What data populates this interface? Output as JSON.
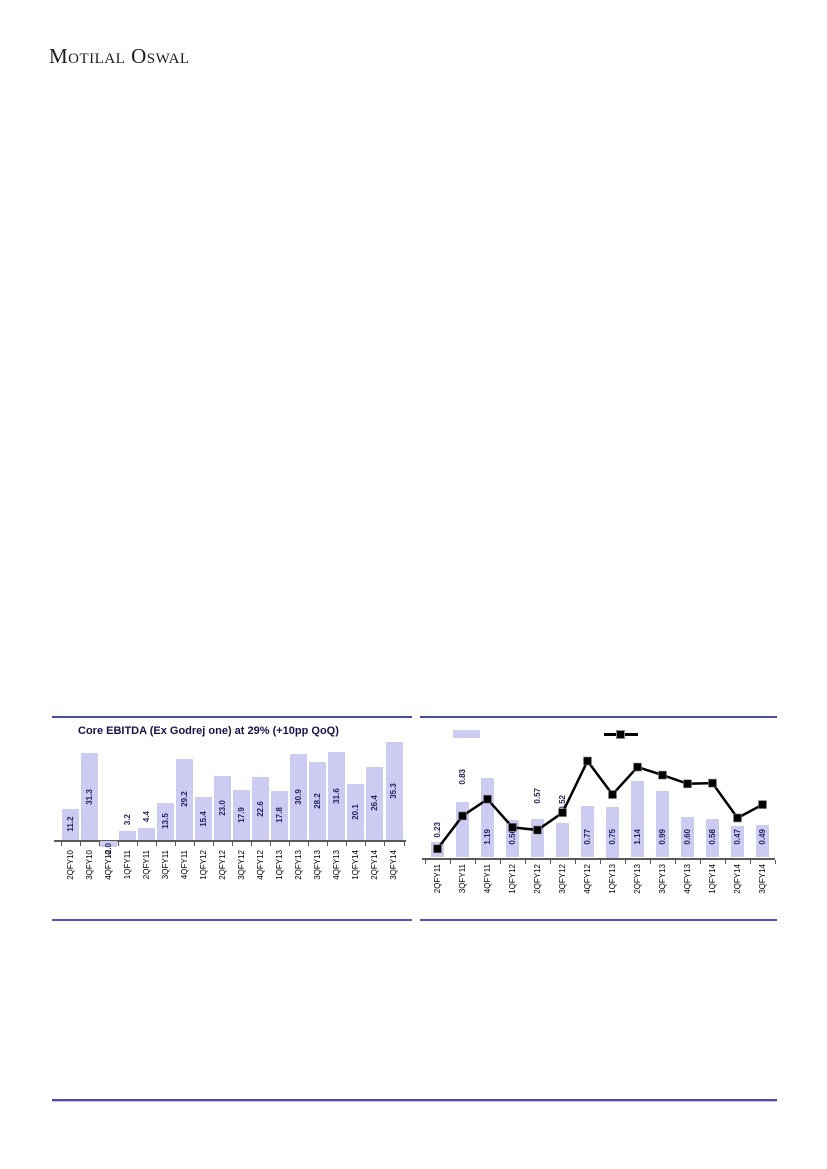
{
  "logo": {
    "text": "Motilal Oswal"
  },
  "chart_data": [
    {
      "type": "bar",
      "title": "Core EBITDA (Ex Godrej one) at 29% (+10pp QoQ)",
      "categories": [
        "2QFY10",
        "3QFY10",
        "4QFY10",
        "1QFY11",
        "2QFY11",
        "3QFY11",
        "4QFY11",
        "1QFY12",
        "2QFY12",
        "3QFY12",
        "4QFY12",
        "1QFY13",
        "2QFY13",
        "3QFY13",
        "4QFY13",
        "1QFY14",
        "2QFY14",
        "3QFY14"
      ],
      "values": [
        11.2,
        31.3,
        -2.0,
        3.2,
        4.4,
        13.5,
        29.2,
        15.4,
        23.0,
        17.9,
        22.6,
        17.8,
        30.9,
        28.2,
        31.6,
        20.1,
        26.4,
        35.3
      ],
      "labels": [
        "11.2",
        "31.3",
        "-2.0",
        "3.2",
        "4.4",
        "13.5",
        "29.2",
        "15.4",
        "23.0",
        "17.9",
        "22.6",
        "17.8",
        "30.9",
        "28.2",
        "31.6",
        "20.1",
        "26.4",
        "35.3"
      ],
      "xlabel": "",
      "ylabel": "",
      "ylim": [
        -5,
        37
      ],
      "grid": false,
      "legend": "none",
      "bar_color": "#ccccf2",
      "label_color": "#1f1f63"
    },
    {
      "type": "bar+line",
      "title": "",
      "categories": [
        "2QFY11",
        "3QFY11",
        "4QFY11",
        "1QFY12",
        "2QFY12",
        "3QFY12",
        "4QFY12",
        "1QFY13",
        "2QFY13",
        "3QFY13",
        "4QFY13",
        "1QFY14",
        "2QFY14",
        "3QFY14"
      ],
      "series": [
        {
          "name": "bar-series",
          "type": "bar",
          "values": [
            0.23,
            0.83,
            1.19,
            0.56,
            0.57,
            0.52,
            0.77,
            0.75,
            1.14,
            0.99,
            0.6,
            0.58,
            0.47,
            0.49
          ],
          "labels": [
            "0.23",
            "0.83",
            "1.19",
            "0.56",
            "0.57",
            "0.52",
            "0.77",
            "0.75",
            "1.14",
            "0.99",
            "0.60",
            "0.58",
            "0.47",
            "0.49"
          ],
          "label_positions": [
            "above",
            "above",
            "in",
            "in",
            "above",
            "above",
            "in",
            "in",
            "in",
            "in",
            "in",
            "in",
            "in",
            "in"
          ],
          "label_lifts": [
            1,
            13,
            0,
            0,
            12,
            8,
            0,
            0,
            0,
            0,
            0,
            0,
            0,
            0
          ],
          "color": "#ccccf2"
        },
        {
          "name": "line-series",
          "type": "line",
          "estimated": true,
          "values": [
            0.13,
            0.62,
            0.87,
            0.45,
            0.41,
            0.67,
            1.44,
            0.94,
            1.35,
            1.23,
            1.1,
            1.11,
            0.59,
            0.79
          ],
          "color": "#000000"
        }
      ],
      "xlabel": "",
      "ylabel": "",
      "ylim": [
        0,
        1.7
      ],
      "grid": false,
      "legend_position": "top",
      "legend_entries": [
        {
          "symbol": "bar-swatch",
          "label": ""
        },
        {
          "symbol": "line-marker",
          "label": ""
        }
      ]
    }
  ]
}
